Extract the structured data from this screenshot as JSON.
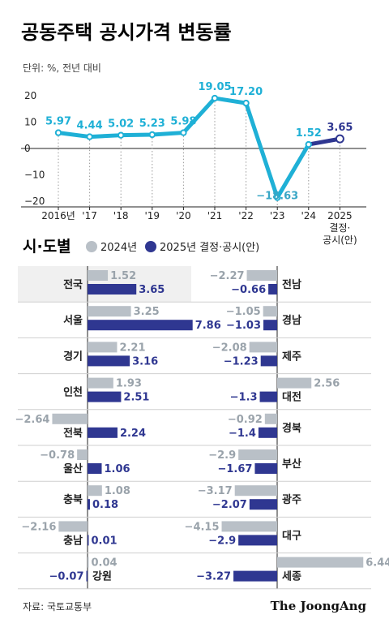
{
  "title": "공동주택 공시가격 변동률",
  "unit_note": "단위: %, 전년 대비",
  "section_title": "시·도별",
  "source": "자료: 국토교통부",
  "brand": "The JoongAng",
  "colors": {
    "line": "#1fb0d6",
    "dark": "#2f3791",
    "gray": "#b9c0c7",
    "gray_text": "#9aa3ab",
    "highlight_bg": "#f0f0f0"
  },
  "chart_data": [
    {
      "type": "line",
      "title": "공동주택 공시가격 변동률",
      "x": [
        "2016년",
        "'17",
        "'18",
        "'19",
        "'20",
        "'21",
        "'22",
        "'23",
        "'24",
        "2025 결정·공시(안)"
      ],
      "x_tick_lines": [
        [
          "2016년"
        ],
        [
          "'17"
        ],
        [
          "'18"
        ],
        [
          "'19"
        ],
        [
          "'20"
        ],
        [
          "'21"
        ],
        [
          "'22"
        ],
        [
          "'23"
        ],
        [
          "'24"
        ],
        [
          "2025",
          "결정·",
          "공시(안)"
        ]
      ],
      "values": [
        5.97,
        4.44,
        5.02,
        5.23,
        5.98,
        19.05,
        17.2,
        -18.63,
        1.52,
        3.65
      ],
      "value_labels": [
        "5.97",
        "4.44",
        "5.02",
        "5.23",
        "5.98",
        "19.05",
        "17.20",
        "−18.63",
        "1.52",
        "3.65"
      ],
      "y_ticks": [
        "20",
        "10",
        "0",
        "−10",
        "−20"
      ],
      "y_tick_values": [
        20,
        10,
        0,
        -10,
        -20
      ],
      "ylim": [
        -22,
        24
      ],
      "ylabel": "단위: %, 전년 대비",
      "grid": false
    },
    {
      "type": "bar",
      "title": "시·도별",
      "legend": [
        "2024년",
        "2025년 결정·공시(안)"
      ],
      "series_names": [
        "2024",
        "2025"
      ],
      "left": [
        {
          "region": "전국",
          "v2024": 1.52,
          "v2025": 3.65,
          "l2024": "1.52",
          "l2025": "3.65",
          "highlight": true
        },
        {
          "region": "서울",
          "v2024": 3.25,
          "v2025": 7.86,
          "l2024": "3.25",
          "l2025": "7.86"
        },
        {
          "region": "경기",
          "v2024": 2.21,
          "v2025": 3.16,
          "l2024": "2.21",
          "l2025": "3.16"
        },
        {
          "region": "인천",
          "v2024": 1.93,
          "v2025": 2.51,
          "l2024": "1.93",
          "l2025": "2.51"
        },
        {
          "region": "전북",
          "v2024": -2.64,
          "v2025": 2.24,
          "l2024": "−2.64",
          "l2025": "2.24"
        },
        {
          "region": "울산",
          "v2024": -0.78,
          "v2025": 1.06,
          "l2024": "−0.78",
          "l2025": "1.06"
        },
        {
          "region": "충북",
          "v2024": 1.08,
          "v2025": 0.18,
          "l2024": "1.08",
          "l2025": "0.18"
        },
        {
          "region": "충남",
          "v2024": -2.16,
          "v2025": 0.01,
          "l2024": "−2.16",
          "l2025": "0.01"
        },
        {
          "region": "강원",
          "v2024": 0.04,
          "v2025": -0.07,
          "l2024": "0.04",
          "l2025": "−0.07"
        }
      ],
      "right": [
        {
          "region": "전남",
          "v2024": -2.27,
          "v2025": -0.66,
          "l2024": "−2.27",
          "l2025": "−0.66"
        },
        {
          "region": "경남",
          "v2024": -1.05,
          "v2025": -1.03,
          "l2024": "−1.05",
          "l2025": "−1.03"
        },
        {
          "region": "제주",
          "v2024": -2.08,
          "v2025": -1.23,
          "l2024": "−2.08",
          "l2025": "−1.23"
        },
        {
          "region": "대전",
          "v2024": 2.56,
          "v2025": -1.3,
          "l2024": "2.56",
          "l2025": "−1.3"
        },
        {
          "region": "경북",
          "v2024": -0.92,
          "v2025": -1.4,
          "l2024": "−0.92",
          "l2025": "−1.4"
        },
        {
          "region": "부산",
          "v2024": -2.9,
          "v2025": -1.67,
          "l2024": "−2.9",
          "l2025": "−1.67"
        },
        {
          "region": "광주",
          "v2024": -3.17,
          "v2025": -2.07,
          "l2024": "−3.17",
          "l2025": "−2.07"
        },
        {
          "region": "대구",
          "v2024": -4.15,
          "v2025": -2.9,
          "l2024": "−4.15",
          "l2025": "−2.9"
        },
        {
          "region": "세종",
          "v2024": 6.44,
          "v2025": -3.27,
          "l2024": "6.44",
          "l2025": "−3.27"
        }
      ]
    }
  ]
}
